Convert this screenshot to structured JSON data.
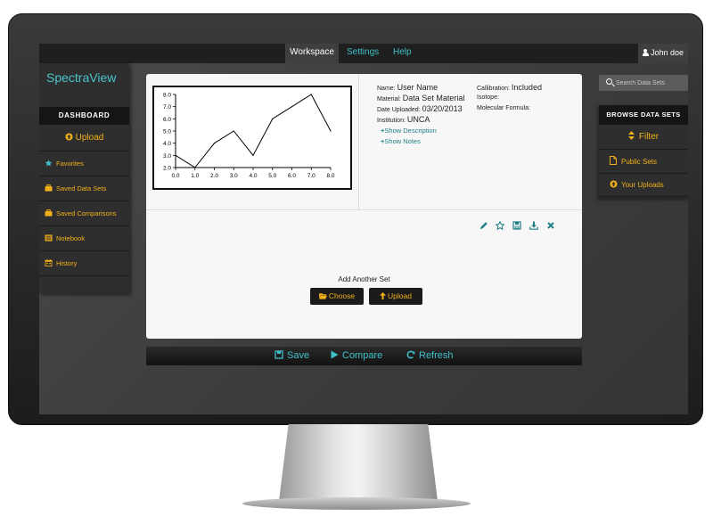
{
  "nav": {
    "items": [
      {
        "label": "Workspace",
        "active": true
      },
      {
        "label": "Settings",
        "active": false
      },
      {
        "label": "Help",
        "active": false
      }
    ],
    "user": "John doe"
  },
  "sidebar": {
    "logo": "SpectraView",
    "heading": "DASHBOARD",
    "upload": "Upload",
    "items": [
      {
        "label": "Favorites",
        "icon": "star-icon"
      },
      {
        "label": "Saved Data Sets",
        "icon": "briefcase-icon"
      },
      {
        "label": "Saved Comparisons",
        "icon": "briefcase-icon"
      },
      {
        "label": "Notebook",
        "icon": "notebook-icon"
      },
      {
        "label": "History",
        "icon": "calendar-icon"
      }
    ]
  },
  "right_sidebar": {
    "search_placeholder": "Search Data Sets",
    "heading": "BROWSE DATA SETS",
    "filter": "Filter",
    "items": [
      {
        "label": "Public Sets",
        "icon": "file-icon"
      },
      {
        "label": "Your Uploads",
        "icon": "upload-circle-icon"
      }
    ]
  },
  "dataset": {
    "name_label": "Name:",
    "name": "User Name",
    "material_label": "Material:",
    "material": "Data Set Material",
    "date_label": "Date Uploaded:",
    "date": "03/20/2013",
    "institution_label": "Institution:",
    "institution": "UNCA",
    "calibration_label": "Callibration:",
    "calibration": "Included",
    "isotope_label": "Isotope:",
    "formula_label": "Molecular Formula:",
    "show_description": "Show Description",
    "show_notes": "Show Notes"
  },
  "add_set": {
    "label": "Add Another Set",
    "choose": "Choose",
    "upload": "Upload"
  },
  "bottom_bar": {
    "save": "Save",
    "compare": "Compare",
    "refresh": "Refresh"
  },
  "colors": {
    "accent": "#3fc1c9",
    "highlight": "#f2b019",
    "panel": "#f7f7f7"
  },
  "chart_data": {
    "type": "line",
    "x": [
      0.0,
      1.0,
      2.0,
      3.0,
      4.0,
      5.0,
      6.0,
      7.0,
      8.0
    ],
    "y": [
      3.0,
      2.0,
      4.0,
      5.0,
      3.0,
      6.0,
      7.0,
      8.0,
      5.0
    ],
    "x_ticks": [
      "0.0",
      "1.0",
      "2.0",
      "3.0",
      "4.0",
      "5.0",
      "6.0",
      "7.0",
      "8.0"
    ],
    "y_ticks": [
      "2.0",
      "3.0",
      "4.0",
      "5.0",
      "6.0",
      "7.0",
      "8.0"
    ],
    "xlim": [
      0,
      8
    ],
    "ylim": [
      2,
      8
    ],
    "grid": false
  }
}
